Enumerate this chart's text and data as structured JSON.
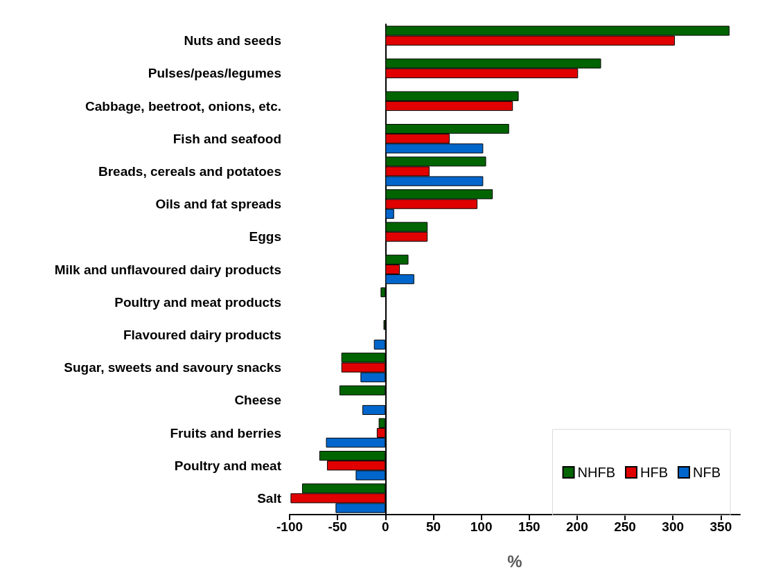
{
  "chart_data": {
    "type": "bar",
    "orientation": "horizontal",
    "xlabel": "%",
    "categories": [
      "Nuts and seeds",
      "Pulses/peas/legumes",
      "Cabbage, beetroot, onions, etc.",
      "Fish and seafood",
      "Breads, cereals and potatoes",
      "Oils and fat spreads",
      "Eggs",
      "Milk and unflavoured dairy products",
      "Poultry and meat products",
      "Flavoured dairy products",
      "Sugar, sweets and savoury snacks",
      "Cheese",
      "Fruits and berries",
      "Poultry and meat",
      "Salt"
    ],
    "series": [
      {
        "name": "NHFB",
        "color": "#006400",
        "values": [
          359,
          225,
          139,
          129,
          105,
          112,
          44,
          24,
          -5,
          -2,
          -46,
          -48,
          -7,
          -69,
          -87
        ]
      },
      {
        "name": "HFB",
        "color": "#e00000",
        "values": [
          302,
          201,
          133,
          67,
          46,
          96,
          44,
          15,
          null,
          null,
          -46,
          null,
          -9,
          -61,
          -99
        ]
      },
      {
        "name": "NFB",
        "color": "#0066cc",
        "values": [
          null,
          null,
          null,
          102,
          102,
          9,
          null,
          30,
          null,
          -12,
          -26,
          -24,
          -62,
          -31,
          -52
        ]
      }
    ],
    "xlim": [
      -100,
      370
    ],
    "xticks": [
      -100,
      -50,
      0,
      50,
      100,
      150,
      200,
      250,
      300,
      350
    ],
    "legend": "bottom right"
  }
}
